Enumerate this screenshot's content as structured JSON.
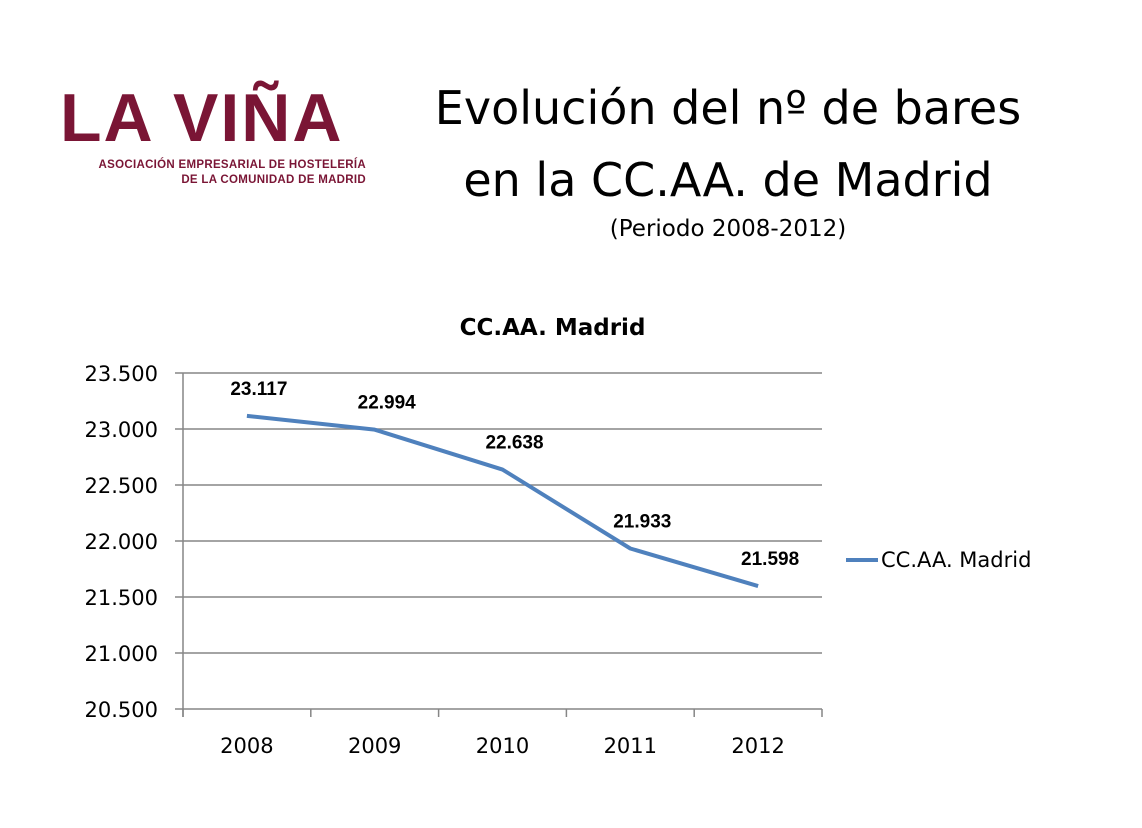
{
  "logo": {
    "name": "LA VIÑA",
    "subtitle_line1": "ASOCIACIÓN EMPRESARIAL DE HOSTELERÍA",
    "subtitle_line2": "DE LA COMUNIDAD DE MADRID",
    "color": "#7a1535"
  },
  "header": {
    "title_line1": "Evolución del nº de bares",
    "title_line2": "en la CC.AA. de Madrid",
    "subtitle": "(Periodo 2008-2012)"
  },
  "chart_data": {
    "type": "line",
    "title": "CC.AA. Madrid",
    "categories": [
      "2008",
      "2009",
      "2010",
      "2011",
      "2012"
    ],
    "series": [
      {
        "name": "CC.AA. Madrid",
        "values": [
          23117,
          22994,
          22638,
          21933,
          21598
        ],
        "labels": [
          "23.117",
          "22.994",
          "22.638",
          "21.933",
          "21.598"
        ],
        "color": "#4f81bd"
      }
    ],
    "ylim": [
      20500,
      23500
    ],
    "yticks": [
      {
        "value": 23500,
        "label": "23.500"
      },
      {
        "value": 23000,
        "label": "23.000"
      },
      {
        "value": 22500,
        "label": "22.500"
      },
      {
        "value": 22000,
        "label": "22.000"
      },
      {
        "value": 21500,
        "label": "21.500"
      },
      {
        "value": 21000,
        "label": "21.000"
      },
      {
        "value": 20500,
        "label": "20.500"
      }
    ],
    "grid": true,
    "legend": "right"
  }
}
